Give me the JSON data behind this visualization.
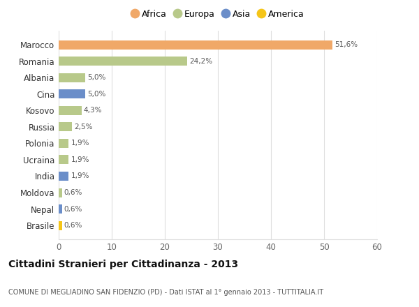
{
  "countries": [
    "Brasile",
    "Nepal",
    "Moldova",
    "India",
    "Ucraina",
    "Polonia",
    "Russia",
    "Kosovo",
    "Cina",
    "Albania",
    "Romania",
    "Marocco"
  ],
  "values": [
    0.6,
    0.6,
    0.6,
    1.9,
    1.9,
    1.9,
    2.5,
    4.3,
    5.0,
    5.0,
    24.2,
    51.6
  ],
  "labels": [
    "0,6%",
    "0,6%",
    "0,6%",
    "1,9%",
    "1,9%",
    "1,9%",
    "2,5%",
    "4,3%",
    "5,0%",
    "5,0%",
    "24,2%",
    "51,6%"
  ],
  "colors": [
    "#F5C518",
    "#6B8EC9",
    "#B8C98A",
    "#6B8EC9",
    "#B8C98A",
    "#B8C98A",
    "#B8C98A",
    "#B8C98A",
    "#6B8EC9",
    "#B8C98A",
    "#B8C98A",
    "#F0A868"
  ],
  "continent": [
    "America",
    "Asia",
    "Europa",
    "Asia",
    "Europa",
    "Europa",
    "Europa",
    "Europa",
    "Asia",
    "Europa",
    "Europa",
    "Africa"
  ],
  "legend_labels": [
    "Africa",
    "Europa",
    "Asia",
    "America"
  ],
  "legend_colors": [
    "#F0A868",
    "#B8C98A",
    "#6B8EC9",
    "#F5C518"
  ],
  "title": "Cittadini Stranieri per Cittadinanza - 2013",
  "subtitle": "COMUNE DI MEGLIADINO SAN FIDENZIO (PD) - Dati ISTAT al 1° gennaio 2013 - TUTTITALIA.IT",
  "xlim": [
    0,
    60
  ],
  "xticks": [
    0,
    10,
    20,
    30,
    40,
    50,
    60
  ],
  "background_color": "#ffffff",
  "grid_color": "#dddddd",
  "bar_height": 0.55
}
